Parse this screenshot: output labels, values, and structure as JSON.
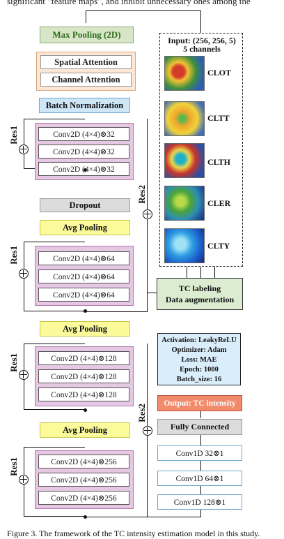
{
  "top_text": "significant \"feature maps\", and inhibit unnecessary ones among the",
  "layers": {
    "max_pooling": "Max Pooling (2D)",
    "spatial_attention": "Spatial Attention",
    "channel_attention": "Channel Attention",
    "batch_norm": "Batch Normalization",
    "dropout": "Dropout",
    "avg_pooling": "Avg Pooling"
  },
  "res_label": "Res1",
  "res2_label": "Res2",
  "conv_blocks": [
    [
      "Conv2D (4×4)⊗32",
      "Conv2D (4×4)⊗32",
      "Conv2D (4×4)⊗32"
    ],
    [
      "Conv2D (4×4)⊗64",
      "Conv2D (4×4)⊗64",
      "Conv2D (4×4)⊗64"
    ],
    [
      "Conv2D (4×4)⊗128",
      "Conv2D (4×4)⊗128",
      "Conv2D (4×4)⊗128"
    ],
    [
      "Conv2D (4×4)⊗256",
      "Conv2D (4×4)⊗256",
      "Conv2D (4×4)⊗256"
    ]
  ],
  "input": {
    "title_line1": "Input: (256, 256, 5)",
    "title_line2": "5 channels",
    "channels": [
      "CLOT",
      "CLTT",
      "CLTH",
      "CLER",
      "CLTY"
    ]
  },
  "labeling": {
    "line1": "TC labeling",
    "line2": "Data augmentation"
  },
  "training": {
    "activation": "Activation: LeakyReLU",
    "optimizer": "Optimizer: Adam",
    "loss": "Loss: MAE",
    "epoch": "Epoch: 1000",
    "batch": "Batch_size: 16"
  },
  "output": "Output: TC intensity",
  "fully_connected": "Fully Connected",
  "conv1d": [
    "Conv1D  32⊗1",
    "Conv1D  64⊗1",
    "Conv1D  128⊗1"
  ],
  "caption": "Figure 3. The framework of the TC intensity estimation model in this study."
}
